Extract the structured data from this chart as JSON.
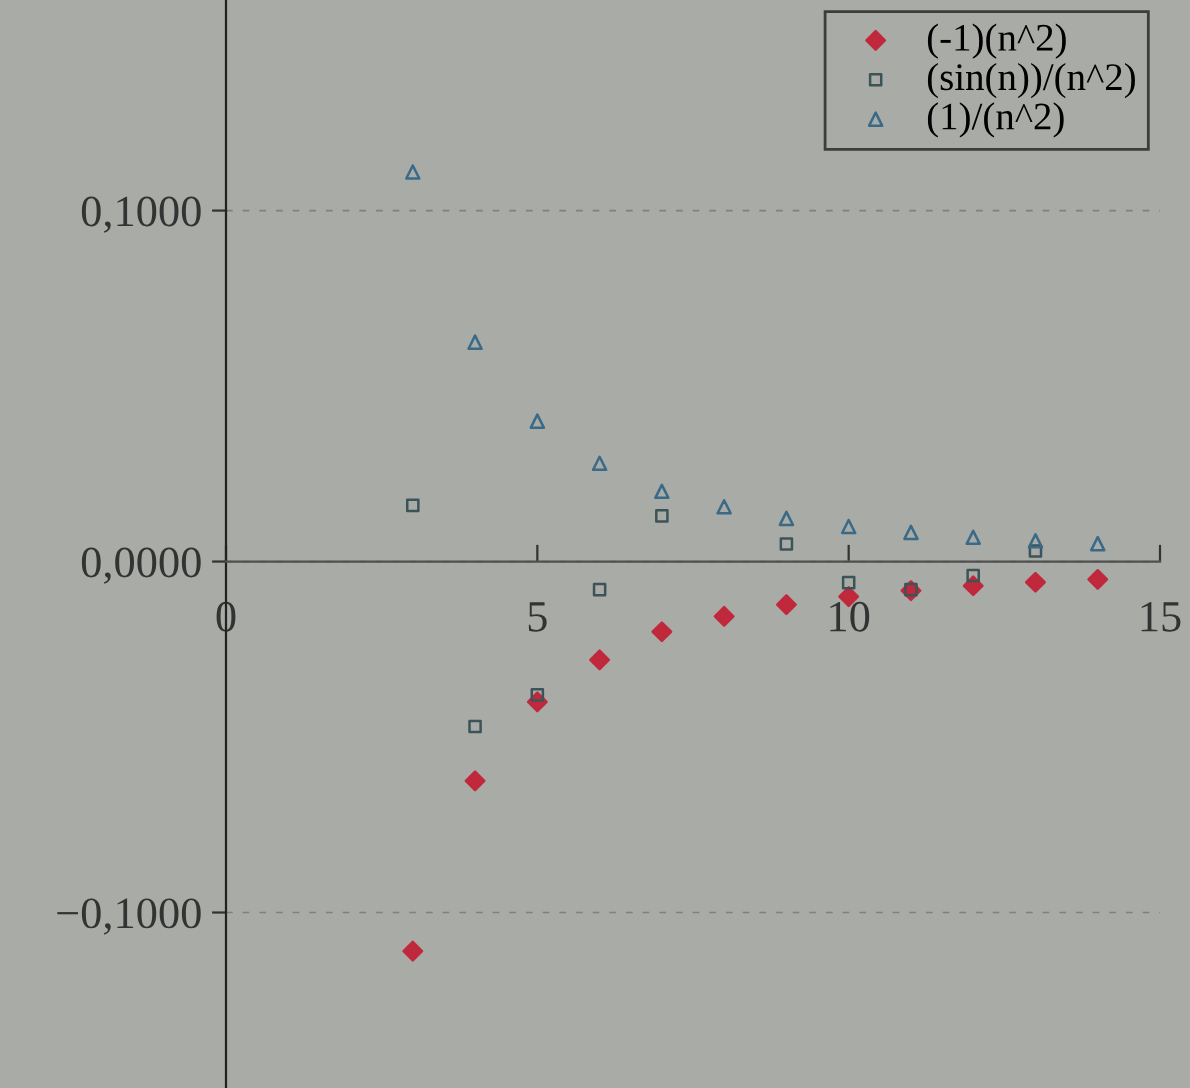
{
  "chart_data": {
    "type": "scatter",
    "x": [
      3,
      4,
      5,
      6,
      7,
      8,
      9,
      10,
      11,
      12,
      13,
      14
    ],
    "series": [
      {
        "name": "(-1)(n^2)",
        "color": "#c0283c",
        "marker": "diamond",
        "values": [
          -0.111,
          -0.0625,
          -0.04,
          -0.028,
          -0.02,
          -0.0156,
          -0.0123,
          -0.01,
          -0.0083,
          -0.0069,
          -0.0059,
          -0.0051
        ]
      },
      {
        "name": "(sin(n))/(n^2)",
        "color": "#3c5458",
        "marker": "square",
        "values": [
          0.016,
          -0.047,
          -0.038,
          -0.008,
          0.013,
          null,
          0.005,
          -0.006,
          -0.008,
          -0.004,
          0.003,
          null
        ]
      },
      {
        "name": "(1)/(n^2)",
        "color": "#3a6a88",
        "marker": "triangle",
        "values": [
          0.111,
          0.0625,
          0.04,
          0.028,
          0.02,
          0.0156,
          0.0123,
          0.01,
          0.0083,
          0.0069,
          0.0059,
          0.0051
        ]
      }
    ],
    "xlim": [
      0,
      15
    ],
    "xticks": [
      0,
      5,
      10,
      15
    ],
    "ylim": [
      -0.15,
      0.16
    ],
    "yticks": [
      {
        "value": -0.1,
        "label": "−0,1000"
      },
      {
        "value": 0,
        "label": "0,0000"
      },
      {
        "value": 0.1,
        "label": "0,1000"
      }
    ],
    "grid": "y",
    "legend": "top right"
  }
}
